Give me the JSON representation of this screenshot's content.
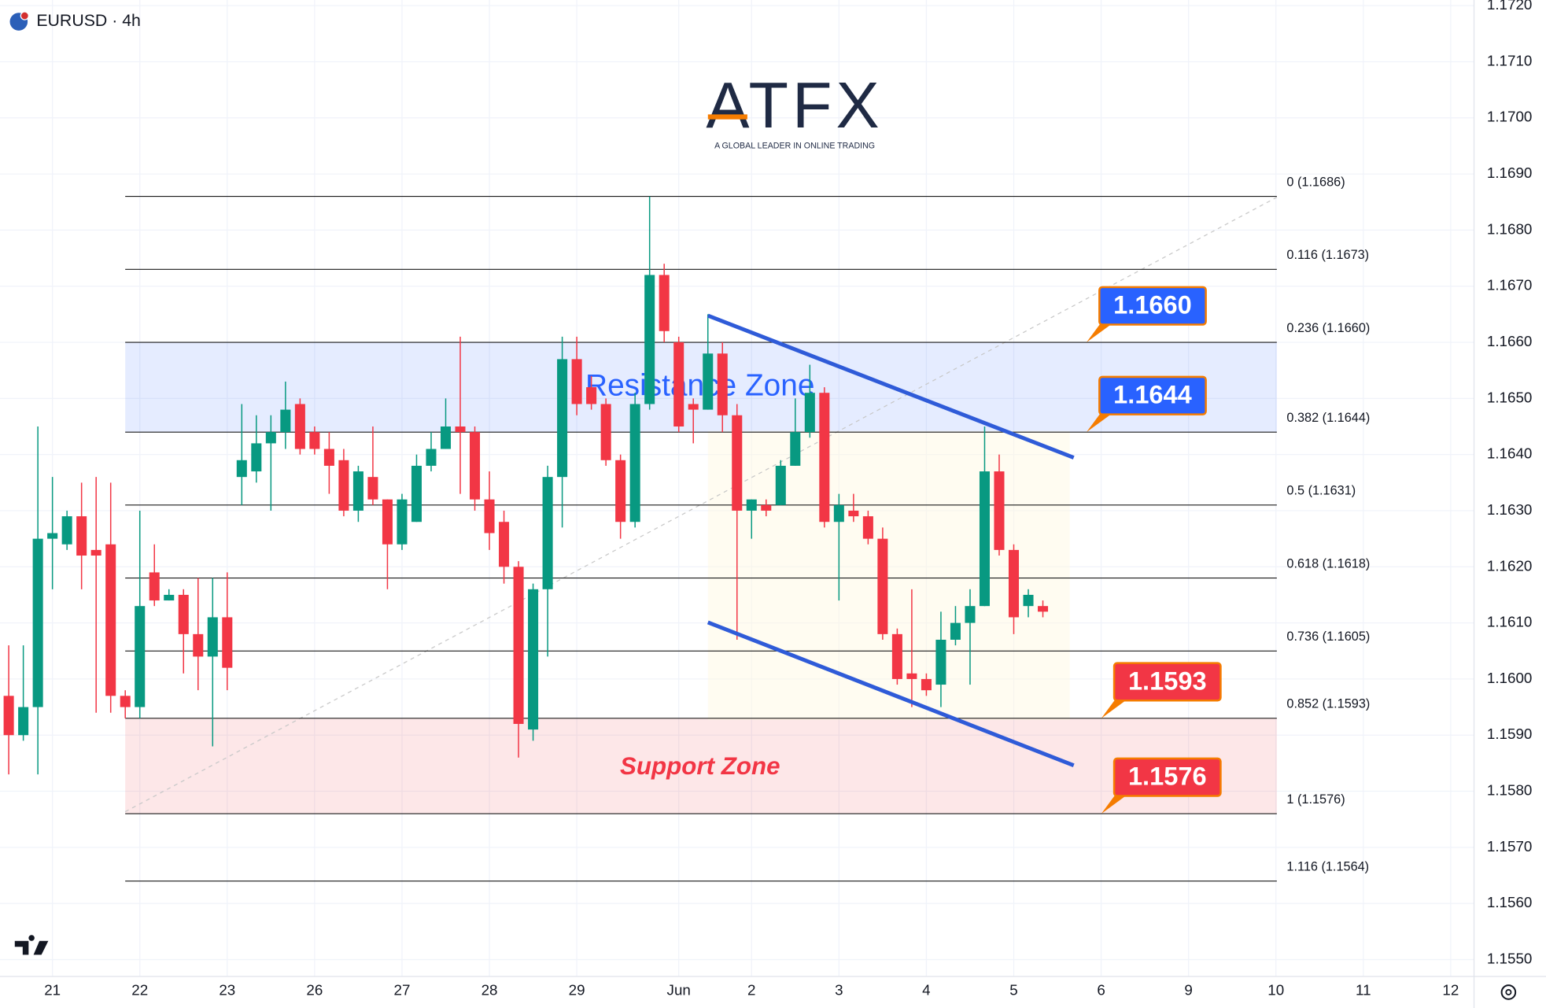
{
  "header": {
    "symbol": "EURUSD · 4h"
  },
  "logo": {
    "brand": "ATFX",
    "tagline": "A GLOBAL LEADER IN ONLINE TRADING"
  },
  "chart_data": {
    "type": "candlestick",
    "up_color": "#089981",
    "down_color": "#f23645",
    "open": [
      1.1597,
      1.159,
      1.1595,
      1.1625,
      1.1624,
      1.1629,
      1.1623,
      1.1624,
      1.1597,
      1.1595,
      1.1619,
      1.1614,
      1.1615,
      1.1608,
      1.1604,
      1.1611,
      1.1636,
      1.1637,
      1.1642,
      1.1644,
      1.1649,
      1.1644,
      1.1641,
      1.1639,
      1.163,
      1.1636,
      1.1632,
      1.1624,
      1.1628,
      1.1638,
      1.1641,
      1.1645,
      1.1644,
      1.1632,
      1.1628,
      1.162,
      1.1591,
      1.1616,
      1.1636,
      1.1657,
      1.1652,
      1.1649,
      1.1639,
      1.1628,
      1.1649,
      1.1672,
      1.166,
      1.1649,
      1.1648,
      1.1658,
      1.1647,
      1.163,
      1.1631,
      1.1631,
      1.1638,
      1.1644,
      1.1651,
      1.1628,
      1.163,
      1.1629,
      1.1625,
      1.1608,
      1.1601,
      1.16,
      1.1599,
      1.1607,
      1.161,
      1.1613,
      1.1637,
      1.1623,
      1.1613,
      1.1613
    ],
    "high": [
      1.1606,
      1.1606,
      1.1645,
      1.1636,
      1.163,
      1.1635,
      1.1636,
      1.1635,
      1.1598,
      1.163,
      1.1624,
      1.1616,
      1.1616,
      1.1618,
      1.1618,
      1.1619,
      1.1649,
      1.1647,
      1.1647,
      1.1653,
      1.165,
      1.1645,
      1.1644,
      1.1641,
      1.1638,
      1.1645,
      1.1632,
      1.1633,
      1.164,
      1.1644,
      1.165,
      1.1661,
      1.1645,
      1.1637,
      1.163,
      1.1621,
      1.1617,
      1.1638,
      1.1661,
      1.1661,
      1.1654,
      1.165,
      1.164,
      1.1651,
      1.1686,
      1.1674,
      1.1661,
      1.165,
      1.1665,
      1.166,
      1.1649,
      1.1632,
      1.1632,
      1.1639,
      1.165,
      1.1656,
      1.1652,
      1.1633,
      1.1633,
      1.163,
      1.1627,
      1.1609,
      1.1616,
      1.1601,
      1.1612,
      1.1613,
      1.1616,
      1.1645,
      1.164,
      1.1624,
      1.1616,
      1.1614
    ],
    "low": [
      1.1583,
      1.1589,
      1.1583,
      1.1616,
      1.1623,
      1.1616,
      1.1594,
      1.1594,
      1.1593,
      1.1593,
      1.1613,
      1.1614,
      1.1601,
      1.1598,
      1.1588,
      1.1598,
      1.1631,
      1.1635,
      1.163,
      1.1641,
      1.164,
      1.164,
      1.1633,
      1.1629,
      1.1628,
      1.1631,
      1.1616,
      1.1623,
      1.1628,
      1.1637,
      1.1641,
      1.1633,
      1.163,
      1.1623,
      1.1617,
      1.1586,
      1.1589,
      1.1604,
      1.1627,
      1.1647,
      1.1648,
      1.1638,
      1.1625,
      1.1627,
      1.1648,
      1.166,
      1.1644,
      1.1642,
      1.1648,
      1.1644,
      1.1607,
      1.1625,
      1.1629,
      1.1631,
      1.1638,
      1.1643,
      1.1627,
      1.1614,
      1.1628,
      1.1624,
      1.1607,
      1.1599,
      1.1595,
      1.1597,
      1.1595,
      1.1606,
      1.1599,
      1.1613,
      1.1622,
      1.1608,
      1.1611,
      1.1611
    ],
    "close": [
      1.159,
      1.1595,
      1.1625,
      1.1626,
      1.1629,
      1.1622,
      1.1622,
      1.1597,
      1.1595,
      1.1613,
      1.1614,
      1.1615,
      1.1608,
      1.1604,
      1.1611,
      1.1602,
      1.1639,
      1.1642,
      1.1644,
      1.1648,
      1.1641,
      1.1641,
      1.1638,
      1.163,
      1.1637,
      1.1632,
      1.1624,
      1.1632,
      1.1638,
      1.1641,
      1.1645,
      1.1644,
      1.1632,
      1.1626,
      1.162,
      1.1592,
      1.1616,
      1.1636,
      1.1657,
      1.1649,
      1.1649,
      1.1639,
      1.1628,
      1.1649,
      1.1672,
      1.1662,
      1.1645,
      1.1648,
      1.1658,
      1.1647,
      1.163,
      1.1632,
      1.163,
      1.1638,
      1.1644,
      1.1651,
      1.1628,
      1.1631,
      1.1629,
      1.1625,
      1.1608,
      1.16,
      1.16,
      1.1598,
      1.1607,
      1.161,
      1.1613,
      1.1637,
      1.1623,
      1.1611,
      1.1615,
      1.1612
    ],
    "xlim": [
      -0.6,
      100.6
    ],
    "xticks": [
      {
        "value": 3,
        "label": "21"
      },
      {
        "value": 9,
        "label": "22"
      },
      {
        "value": 15,
        "label": "23"
      },
      {
        "value": 21,
        "label": "26"
      },
      {
        "value": 27,
        "label": "27"
      },
      {
        "value": 33,
        "label": "28"
      },
      {
        "value": 39,
        "label": "29"
      },
      {
        "value": 46,
        "label": "Jun"
      },
      {
        "value": 51,
        "label": "2"
      },
      {
        "value": 57,
        "label": "3"
      },
      {
        "value": 63,
        "label": "4"
      },
      {
        "value": 69,
        "label": "5"
      },
      {
        "value": 75,
        "label": "6"
      },
      {
        "value": 81,
        "label": "9"
      },
      {
        "value": 87,
        "label": "10"
      },
      {
        "value": 93,
        "label": "11"
      },
      {
        "value": 99,
        "label": "12"
      }
    ],
    "ylim": [
      1.1547,
      1.1721
    ],
    "yticks": [
      {
        "value": 1.172,
        "label": "1.1720"
      },
      {
        "value": 1.171,
        "label": "1.1710"
      },
      {
        "value": 1.17,
        "label": "1.1700"
      },
      {
        "value": 1.169,
        "label": "1.1690"
      },
      {
        "value": 1.168,
        "label": "1.1680"
      },
      {
        "value": 1.167,
        "label": "1.1670"
      },
      {
        "value": 1.166,
        "label": "1.1660"
      },
      {
        "value": 1.165,
        "label": "1.1650"
      },
      {
        "value": 1.164,
        "label": "1.1640"
      },
      {
        "value": 1.163,
        "label": "1.1630"
      },
      {
        "value": 1.162,
        "label": "1.1620"
      },
      {
        "value": 1.161,
        "label": "1.1610"
      },
      {
        "value": 1.16,
        "label": "1.1600"
      },
      {
        "value": 1.159,
        "label": "1.1590"
      },
      {
        "value": 1.158,
        "label": "1.1580"
      },
      {
        "value": 1.157,
        "label": "1.1570"
      },
      {
        "value": 1.156,
        "label": "1.1560"
      },
      {
        "value": 1.155,
        "label": "1.1550"
      }
    ],
    "grid": true,
    "fibonacci": [
      {
        "value": 1.1686,
        "label": "0 (1.1686)"
      },
      {
        "value": 1.1673,
        "label": "0.116 (1.1673)"
      },
      {
        "value": 1.166,
        "label": "0.236 (1.1660)"
      },
      {
        "value": 1.1644,
        "label": "0.382 (1.1644)"
      },
      {
        "value": 1.1631,
        "label": "0.5 (1.1631)"
      },
      {
        "value": 1.1618,
        "label": "0.618 (1.1618)"
      },
      {
        "value": 1.1605,
        "label": "0.736 (1.1605)"
      },
      {
        "value": 1.1593,
        "label": "0.852 (1.1593)"
      },
      {
        "value": 1.1576,
        "label": "1 (1.1576)"
      },
      {
        "value": 1.1564,
        "label": "1.116 (1.1564)"
      }
    ],
    "zones": [
      {
        "name": "Resistance Zone",
        "range": [
          1.1644,
          1.166
        ],
        "color": "#2962ff"
      },
      {
        "name": "Support Zone",
        "range": [
          1.1576,
          1.1593
        ],
        "color": "#f23645"
      }
    ],
    "price_labels": [
      {
        "value": 1.166,
        "label": "1.1660",
        "color": "#2962ff"
      },
      {
        "value": 1.1644,
        "label": "1.1644",
        "color": "#2962ff"
      },
      {
        "value": 1.1593,
        "label": "1.1593",
        "color": "#f23645"
      },
      {
        "value": 1.1576,
        "label": "1.1576",
        "color": "#f23645"
      }
    ]
  }
}
